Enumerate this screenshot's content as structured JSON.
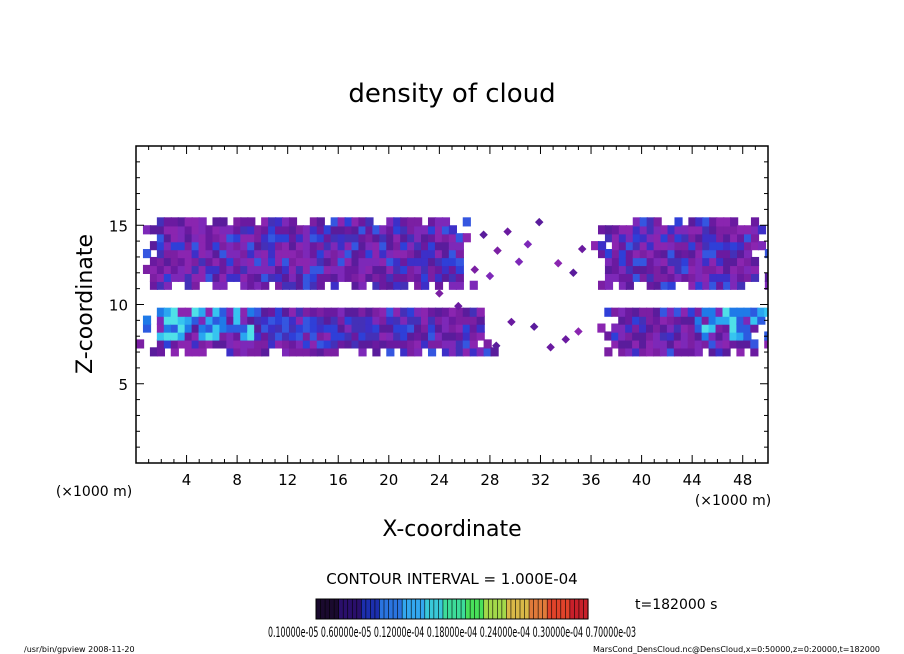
{
  "chart_data": {
    "type": "heatmap",
    "title": "density of cloud",
    "xlabel": "X-coordinate",
    "ylabel": "Z-coordinate",
    "x_unit": "(×1000 m)",
    "y_unit": "(×1000 m)",
    "xlim": [
      0,
      50
    ],
    "ylim": [
      0,
      20
    ],
    "x_ticks": [
      4,
      8,
      12,
      16,
      20,
      24,
      28,
      32,
      36,
      40,
      44,
      48
    ],
    "y_ticks": [
      5,
      10,
      15
    ],
    "contour_interval": "CONTOUR INTERVAL = 1.000E-04",
    "time_label": "t=182000 s",
    "colorbar_labels": "0.10000e-05 0.60000e-05 0.12000e-04 0.18000e-04 0.24000e-04 0.30000e-04 0.70000e-03",
    "colorbar_colors": [
      "#1a0a2e",
      "#2a0f6b",
      "#1c2fae",
      "#2a74e0",
      "#33a7ef",
      "#39c8d9",
      "#3ddc9a",
      "#48e05a",
      "#a3d94a",
      "#d9b848",
      "#e07a3a",
      "#e0432a",
      "#c8202a"
    ],
    "cloud_bands": [
      {
        "name": "upper layer",
        "z_range": [
          11.0,
          15.2
        ],
        "x_coverage": [
          [
            0,
            26.5
          ],
          [
            36.0,
            50
          ]
        ],
        "dominant": "purple",
        "peak_color": "blue"
      },
      {
        "name": "lower layer",
        "z_range": [
          6.8,
          9.8
        ],
        "x_coverage": [
          [
            0,
            28.5
          ],
          [
            36.5,
            50
          ]
        ],
        "dominant": "purple",
        "peak_color": "cyan"
      }
    ],
    "grid": false,
    "legend": "bottom"
  },
  "footer": {
    "left": "/usr/bin/gpview   2008-11-20",
    "right": "MarsCond_DensCloud.nc@DensCloud,x=0:50000,z=0:20000,t=182000"
  }
}
